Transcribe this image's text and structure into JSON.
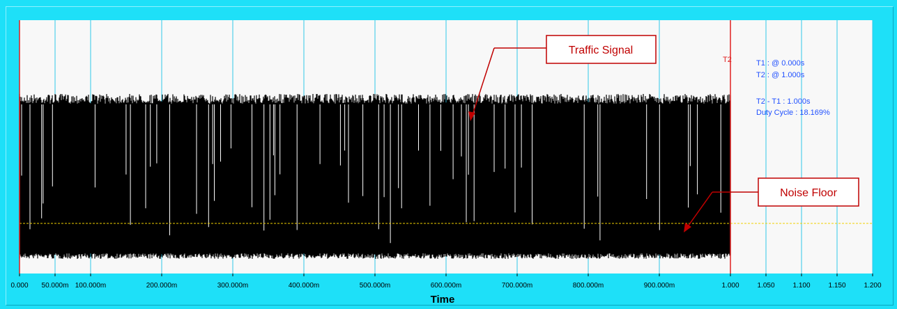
{
  "chart_data": {
    "type": "line",
    "title": "",
    "xlabel": "Time",
    "ylabel": "",
    "xlim": [
      0,
      1.2
    ],
    "grid": true,
    "x_ticks": [
      {
        "v": 0,
        "label": "0.000"
      },
      {
        "v": 0.05,
        "label": "50.000m"
      },
      {
        "v": 0.1,
        "label": "100.000m"
      },
      {
        "v": 0.2,
        "label": "200.000m"
      },
      {
        "v": 0.3,
        "label": "300.000m"
      },
      {
        "v": 0.4,
        "label": "400.000m"
      },
      {
        "v": 0.5,
        "label": "500.000m"
      },
      {
        "v": 0.6,
        "label": "600.000m"
      },
      {
        "v": 0.7,
        "label": "700.000m"
      },
      {
        "v": 0.8,
        "label": "800.000m"
      },
      {
        "v": 0.9,
        "label": "900.000m"
      },
      {
        "v": 1.0,
        "label": "1.000"
      },
      {
        "v": 1.05,
        "label": "1.050"
      },
      {
        "v": 1.1,
        "label": "1.100"
      },
      {
        "v": 1.15,
        "label": "1.150"
      },
      {
        "v": 1.2,
        "label": "1.200"
      }
    ],
    "cursors": [
      {
        "name": "T1",
        "x": 0.0
      },
      {
        "name": "T2",
        "x": 1.0
      }
    ],
    "signal_range": [
      0.0,
      1.0
    ],
    "noise_floor_label": "Noise Floor",
    "signal_label": "Traffic Signal",
    "readouts": [
      "T1 : @ 0.000s",
      "T2 : @ 1.000s",
      "T2 - T1 : 1.000s",
      "Duty Cycle : 18.169%"
    ],
    "duty_cycle_percent": 18.169
  },
  "colors": {
    "background": "#1ee0f8",
    "plot_area": "#f8f8f8",
    "grid": "#30c8e8",
    "signal": "#000000",
    "cursor": "#e02020",
    "noise_floor": "#f0d000",
    "readout_text": "#2050ff",
    "callout": "#c00000"
  }
}
